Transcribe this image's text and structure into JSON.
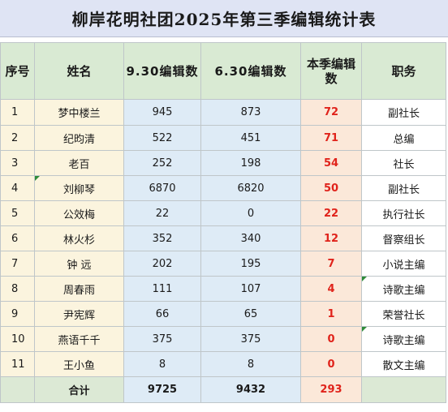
{
  "title": "柳岸花明社团2025年第三季编辑统计表",
  "headers": {
    "seq": "序号",
    "name": "姓名",
    "sep": "9.30编辑数",
    "jun": "6.30编辑数",
    "quarter": "本季编辑数",
    "role": "职务"
  },
  "rows": [
    {
      "seq": "1",
      "name": "梦中楼兰",
      "sep": "945",
      "jun": "873",
      "quarter": "72",
      "role": "副社长"
    },
    {
      "seq": "2",
      "name": "纪昀清",
      "sep": "522",
      "jun": "451",
      "quarter": "71",
      "role": "总编"
    },
    {
      "seq": "3",
      "name": "老百",
      "sep": "252",
      "jun": "198",
      "quarter": "54",
      "role": "社长"
    },
    {
      "seq": "4",
      "name": "刘柳琴",
      "sep": "6870",
      "jun": "6820",
      "quarter": "50",
      "role": "副社长"
    },
    {
      "seq": "5",
      "name": "公效梅",
      "sep": "22",
      "jun": "0",
      "quarter": "22",
      "role": "执行社长"
    },
    {
      "seq": "6",
      "name": "林火杉",
      "sep": "352",
      "jun": "340",
      "quarter": "12",
      "role": "督察组长"
    },
    {
      "seq": "7",
      "name": "钟  远",
      "sep": "202",
      "jun": "195",
      "quarter": "7",
      "role": "小说主编"
    },
    {
      "seq": "8",
      "name": "周春雨",
      "sep": "111",
      "jun": "107",
      "quarter": "4",
      "role": "诗歌主编"
    },
    {
      "seq": "9",
      "name": "尹宪辉",
      "sep": "66",
      "jun": "65",
      "quarter": "1",
      "role": "荣誉社长"
    },
    {
      "seq": "10",
      "name": "燕语千千",
      "sep": "375",
      "jun": "375",
      "quarter": "0",
      "role": "诗歌主编"
    },
    {
      "seq": "11",
      "name": "王小鱼",
      "sep": "8",
      "jun": "8",
      "quarter": "0",
      "role": "散文主编"
    }
  ],
  "total": {
    "label": "合计",
    "sep": "9725",
    "jun": "9432",
    "quarter": "293"
  },
  "colors": {
    "title_bg": "#dfe4f4",
    "header_bg": "#d9ead3",
    "name_bg": "#fbf4de",
    "number_bg": "#deebf6",
    "quarter_bg": "#fbe8d9",
    "quarter_text": "#e0231b",
    "comment_marker": "#2e8b3a"
  }
}
